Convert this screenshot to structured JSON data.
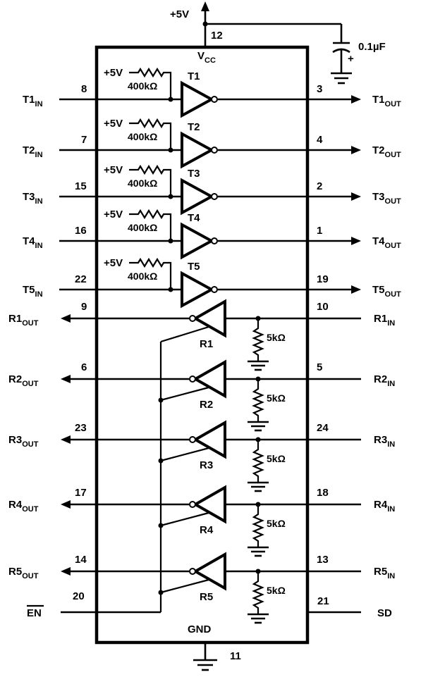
{
  "supply": {
    "plus5v": "+5V",
    "vcc_main": "V",
    "vcc_sub": "CC",
    "vcc_pin": "12",
    "cap_value": "0.1µF",
    "cap_polarity": "+"
  },
  "ground": {
    "label": "GND",
    "pin": "11"
  },
  "transmitters": [
    {
      "name": "T1",
      "in_main": "T1",
      "out_main": "T1",
      "in_pin": "8",
      "out_pin": "3",
      "pullup_supply": "+5V",
      "pullup_value": "400kΩ"
    },
    {
      "name": "T2",
      "in_main": "T2",
      "out_main": "T2",
      "in_pin": "7",
      "out_pin": "4",
      "pullup_supply": "+5V",
      "pullup_value": "400kΩ"
    },
    {
      "name": "T3",
      "in_main": "T3",
      "out_main": "T3",
      "in_pin": "15",
      "out_pin": "2",
      "pullup_supply": "+5V",
      "pullup_value": "400kΩ"
    },
    {
      "name": "T4",
      "in_main": "T4",
      "out_main": "T4",
      "in_pin": "16",
      "out_pin": "1",
      "pullup_supply": "+5V",
      "pullup_value": "400kΩ"
    },
    {
      "name": "T5",
      "in_main": "T5",
      "out_main": "T5",
      "in_pin": "22",
      "out_pin": "19",
      "pullup_supply": "+5V",
      "pullup_value": "400kΩ"
    }
  ],
  "tx_in_sub": "IN",
  "tx_out_sub": "OUT",
  "receivers": [
    {
      "name": "R1",
      "out_main": "R1",
      "in_main": "R1",
      "out_pin": "9",
      "in_pin": "10",
      "pulldown_value": "5kΩ"
    },
    {
      "name": "R2",
      "out_main": "R2",
      "in_main": "R2",
      "out_pin": "6",
      "in_pin": "5",
      "pulldown_value": "5kΩ"
    },
    {
      "name": "R3",
      "out_main": "R3",
      "in_main": "R3",
      "out_pin": "23",
      "in_pin": "24",
      "pulldown_value": "5kΩ"
    },
    {
      "name": "R4",
      "out_main": "R4",
      "in_main": "R4",
      "out_pin": "17",
      "in_pin": "18",
      "pulldown_value": "5kΩ"
    },
    {
      "name": "R5",
      "out_main": "R5",
      "in_main": "R5",
      "out_pin": "14",
      "in_pin": "13",
      "pulldown_value": "5kΩ"
    }
  ],
  "rx_out_sub": "OUT",
  "rx_in_sub": "IN",
  "control": {
    "en_label": "EN",
    "en_pin": "20",
    "sd_label": "SD",
    "sd_pin": "21"
  }
}
